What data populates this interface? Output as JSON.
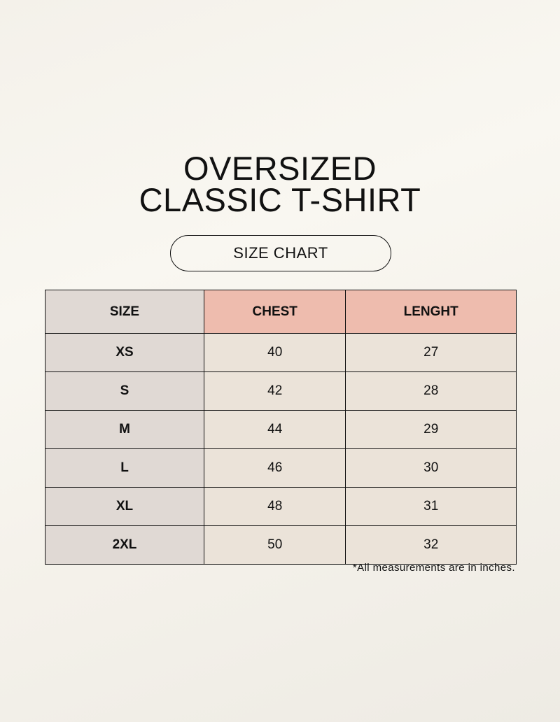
{
  "title": {
    "line1": "OVERSIZED",
    "line2": "CLASSIC T-SHIRT"
  },
  "badge": "SIZE CHART",
  "table": {
    "headers": [
      "SIZE",
      "CHEST",
      "LENGHT"
    ],
    "rows": [
      [
        "XS",
        "40",
        "27"
      ],
      [
        "S",
        "42",
        "28"
      ],
      [
        "M",
        "44",
        "29"
      ],
      [
        "L",
        "46",
        "30"
      ],
      [
        "XL",
        "48",
        "31"
      ],
      [
        "2XL",
        "50",
        "32"
      ]
    ]
  },
  "note": "*All measurements are in inches.",
  "colors": {
    "size_column": "#e0d9d4",
    "header_accent": "#eebcae",
    "cells": "#ebe3d9",
    "background": "#f7f5ef"
  }
}
